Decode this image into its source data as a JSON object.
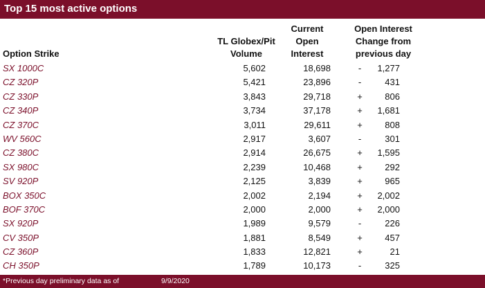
{
  "title": "Top 15 most active options",
  "headers": {
    "option_strike": "Option Strike",
    "volume_line1": "TL Globex/Pit",
    "volume_line2": "Volume",
    "oi_line1": "Current",
    "oi_line2": "Open",
    "oi_line3": "Interest",
    "chg_line1": "Open Interest",
    "chg_line2": "Change from",
    "chg_line3": "previous day"
  },
  "rows": [
    {
      "strike": "SX 1000C",
      "volume": "5,602",
      "open_interest": "18,698",
      "sign": "-",
      "change": "1,277"
    },
    {
      "strike": "CZ 320P",
      "volume": "5,421",
      "open_interest": "23,896",
      "sign": "-",
      "change": "431"
    },
    {
      "strike": "CZ 330P",
      "volume": "3,843",
      "open_interest": "29,718",
      "sign": "+",
      "change": "806"
    },
    {
      "strike": "CZ 340P",
      "volume": "3,734",
      "open_interest": "37,178",
      "sign": "+",
      "change": "1,681"
    },
    {
      "strike": "CZ 370C",
      "volume": "3,011",
      "open_interest": "29,611",
      "sign": "+",
      "change": "808"
    },
    {
      "strike": "WV 560C",
      "volume": "2,917",
      "open_interest": "3,607",
      "sign": "-",
      "change": "301"
    },
    {
      "strike": "CZ 380C",
      "volume": "2,914",
      "open_interest": "26,675",
      "sign": "+",
      "change": "1,595"
    },
    {
      "strike": "SX 980C",
      "volume": "2,239",
      "open_interest": "10,468",
      "sign": "+",
      "change": "292"
    },
    {
      "strike": "SV 920P",
      "volume": "2,125",
      "open_interest": "3,839",
      "sign": "+",
      "change": "965"
    },
    {
      "strike": "BOX 350C",
      "volume": "2,002",
      "open_interest": "2,194",
      "sign": "+",
      "change": "2,002"
    },
    {
      "strike": "BOF 370C",
      "volume": "2,000",
      "open_interest": "2,000",
      "sign": "+",
      "change": "2,000"
    },
    {
      "strike": "SX 920P",
      "volume": "1,989",
      "open_interest": "9,579",
      "sign": "-",
      "change": "226"
    },
    {
      "strike": "CV 350P",
      "volume": "1,881",
      "open_interest": "8,549",
      "sign": "+",
      "change": "457"
    },
    {
      "strike": "CZ 360P",
      "volume": "1,833",
      "open_interest": "12,821",
      "sign": "+",
      "change": "21"
    },
    {
      "strike": "CH 350P",
      "volume": "1,789",
      "open_interest": "10,173",
      "sign": "-",
      "change": "325"
    }
  ],
  "footer": {
    "note": "*Previous day preliminary data as of",
    "date": "9/9/2020"
  },
  "colors": {
    "accent": "#7b0f2a",
    "text": "#111111"
  }
}
